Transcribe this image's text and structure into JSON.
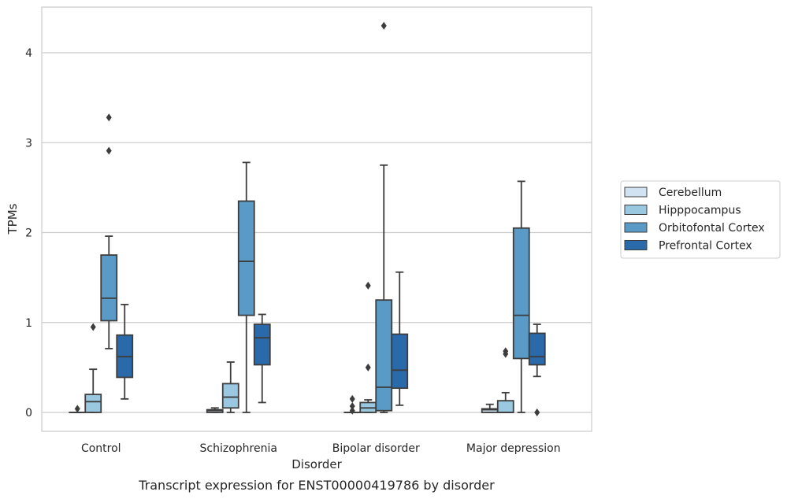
{
  "chart_data": {
    "type": "box",
    "caption": "Transcript expression for ENST00000419786 by disorder",
    "xlabel": "Disorder",
    "ylabel": "TPMs",
    "categories": [
      "Control",
      "Schizophrenia",
      "Bipolar disorder",
      "Major depression"
    ],
    "ylim": [
      -0.21,
      4.5
    ],
    "yticks": [
      0,
      1,
      2,
      3,
      4
    ],
    "grid": "horizontal",
    "legend_position": "right",
    "series": [
      {
        "name": "Cerebellum",
        "color": "#d1e2f2",
        "boxes": [
          {
            "whisker_low": 0.0,
            "q1": 0.0,
            "median": 0.0,
            "q3": 0.0,
            "whisker_high": 0.0,
            "outliers": [
              0.04
            ]
          },
          {
            "whisker_low": 0.0,
            "q1": 0.0,
            "median": 0.02,
            "q3": 0.03,
            "whisker_high": 0.05,
            "outliers": []
          },
          {
            "whisker_low": 0.0,
            "q1": 0.0,
            "median": 0.0,
            "q3": 0.0,
            "whisker_high": 0.0,
            "outliers": [
              0.15,
              0.07,
              0.02
            ]
          },
          {
            "whisker_low": 0.0,
            "q1": 0.0,
            "median": 0.03,
            "q3": 0.04,
            "whisker_high": 0.09,
            "outliers": []
          }
        ]
      },
      {
        "name": "Hipppocampus",
        "color": "#9ac8e0",
        "boxes": [
          {
            "whisker_low": 0.0,
            "q1": 0.0,
            "median": 0.12,
            "q3": 0.2,
            "whisker_high": 0.48,
            "outliers": [
              0.95
            ]
          },
          {
            "whisker_low": 0.0,
            "q1": 0.05,
            "median": 0.17,
            "q3": 0.32,
            "whisker_high": 0.56,
            "outliers": []
          },
          {
            "whisker_low": 0.0,
            "q1": 0.0,
            "median": 0.05,
            "q3": 0.11,
            "whisker_high": 0.14,
            "outliers": [
              1.41,
              0.5
            ]
          },
          {
            "whisker_low": 0.0,
            "q1": 0.0,
            "median": 0.0,
            "q3": 0.13,
            "whisker_high": 0.22,
            "outliers": [
              0.68,
              0.65
            ]
          }
        ]
      },
      {
        "name": "Orbitofontal Cortex",
        "color": "#5a9ac6",
        "boxes": [
          {
            "whisker_low": 0.71,
            "q1": 1.02,
            "median": 1.27,
            "q3": 1.75,
            "whisker_high": 1.96,
            "outliers": [
              3.28,
              2.91
            ]
          },
          {
            "whisker_low": 0.0,
            "q1": 1.08,
            "median": 1.68,
            "q3": 2.35,
            "whisker_high": 2.78,
            "outliers": []
          },
          {
            "whisker_low": 0.0,
            "q1": 0.02,
            "median": 0.28,
            "q3": 1.25,
            "whisker_high": 2.75,
            "outliers": [
              4.3
            ]
          },
          {
            "whisker_low": 0.0,
            "q1": 0.6,
            "median": 1.08,
            "q3": 2.05,
            "whisker_high": 2.57,
            "outliers": []
          }
        ]
      },
      {
        "name": "Prefrontal Cortex",
        "color": "#2a6aab",
        "boxes": [
          {
            "whisker_low": 0.15,
            "q1": 0.39,
            "median": 0.62,
            "q3": 0.86,
            "whisker_high": 1.2,
            "outliers": []
          },
          {
            "whisker_low": 0.11,
            "q1": 0.53,
            "median": 0.83,
            "q3": 0.98,
            "whisker_high": 1.09,
            "outliers": []
          },
          {
            "whisker_low": 0.08,
            "q1": 0.27,
            "median": 0.47,
            "q3": 0.87,
            "whisker_high": 1.56,
            "outliers": []
          },
          {
            "whisker_low": 0.4,
            "q1": 0.53,
            "median": 0.62,
            "q3": 0.88,
            "whisker_high": 0.98,
            "outliers": [
              0.0
            ]
          }
        ]
      }
    ]
  }
}
